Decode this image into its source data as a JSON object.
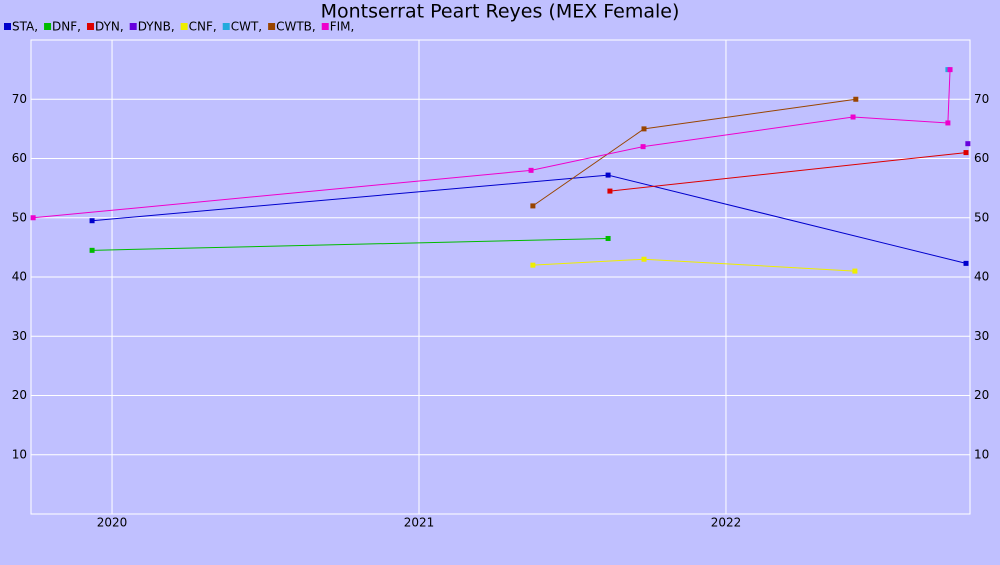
{
  "chart_data": {
    "type": "line",
    "title": "Montserrat Peart Reyes (MEX Female)",
    "series": [
      {
        "name": "STA,",
        "color": "#0000cc",
        "x": [
          2019.935,
          2021.616,
          2022.782
        ],
        "values": [
          49.5,
          57.2,
          42.3
        ]
      },
      {
        "name": "DNF,",
        "color": "#00bb00",
        "x": [
          2019.935,
          2021.616
        ],
        "values": [
          44.5,
          46.5
        ]
      },
      {
        "name": "DYN,",
        "color": "#dd0000",
        "x": [
          2021.622,
          2022.782
        ],
        "values": [
          54.5,
          61
        ]
      },
      {
        "name": "DYNB,",
        "color": "#6600dd",
        "x": [
          2022.788
        ],
        "values": [
          62.5
        ]
      },
      {
        "name": "CNF,",
        "color": "#eeee00",
        "x": [
          2021.371,
          2021.733,
          2022.42
        ],
        "values": [
          42,
          43,
          41
        ]
      },
      {
        "name": "CWT,",
        "color": "#22aadd",
        "x": [
          2022.723
        ],
        "values": [
          75
        ]
      },
      {
        "name": "CWTB,",
        "color": "#994400",
        "x": [
          2021.371,
          2021.733,
          2022.423
        ],
        "values": [
          52,
          65,
          70
        ]
      },
      {
        "name": "FIM,",
        "color": "#ee00cc",
        "x": [
          2019.743,
          2021.365,
          2021.73,
          2022.414,
          2022.723,
          2022.73
        ],
        "values": [
          50,
          58,
          62,
          67,
          66,
          75
        ]
      }
    ],
    "xlim": [
      2019.736,
      2022.795
    ],
    "xticks": [
      2020,
      2021,
      2022
    ],
    "ylim": [
      0,
      80
    ],
    "yticks": [
      10,
      20,
      30,
      40,
      50,
      60,
      70
    ],
    "grid": true,
    "legend": "top-left"
  }
}
